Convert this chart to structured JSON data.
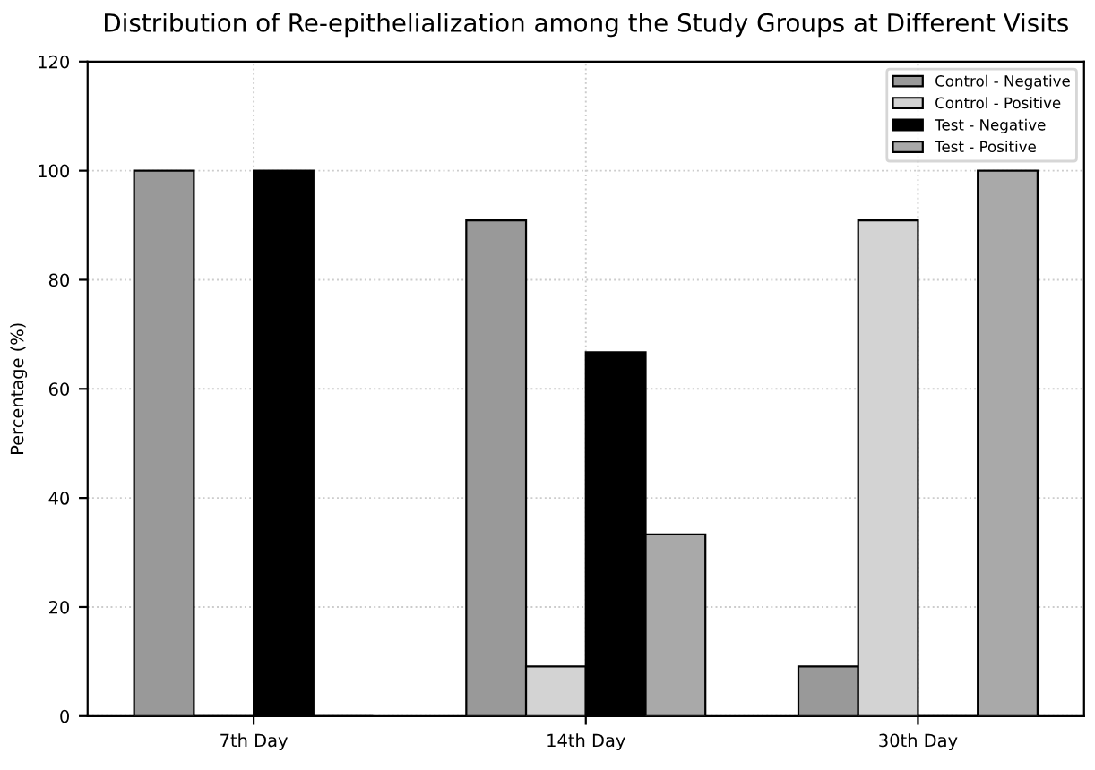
{
  "chart_data": {
    "type": "bar",
    "title": "Distribution of Re-epithelialization among the Study Groups at Different Visits",
    "ylabel": "Percentage (%)",
    "categories": [
      "7th Day",
      "14th Day",
      "30th Day"
    ],
    "series": [
      {
        "name": "Control - Negative",
        "color": "#999999",
        "values": [
          100,
          90.9,
          9.1
        ]
      },
      {
        "name": "Control - Positive",
        "color": "#d3d3d3",
        "values": [
          0,
          9.1,
          90.9
        ]
      },
      {
        "name": "Test - Negative",
        "color": "#000000",
        "values": [
          100,
          66.7,
          0
        ]
      },
      {
        "name": "Test - Positive",
        "color": "#a9a9a9",
        "values": [
          0,
          33.3,
          100
        ]
      }
    ],
    "ylim": [
      0,
      120
    ],
    "yticks": [
      0,
      20,
      40,
      60,
      80,
      100,
      120
    ],
    "grid": true,
    "legend": "top right"
  }
}
